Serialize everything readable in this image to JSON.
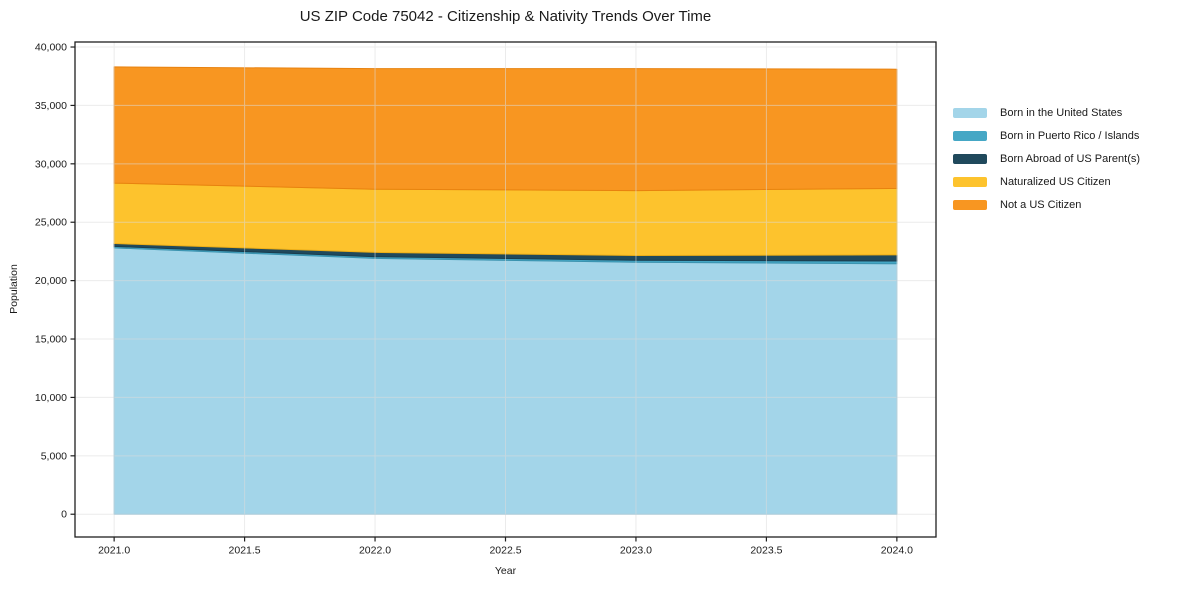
{
  "chart_data": {
    "type": "area",
    "stacked": true,
    "title": "US ZIP Code 75042 - Citizenship & Nativity Trends Over Time",
    "xlabel": "Year",
    "ylabel": "Population",
    "x": [
      2021,
      2022,
      2023,
      2024
    ],
    "series": [
      {
        "name": "Born in the United States",
        "color": "#A3D5E9",
        "edge_color": "#8CC3DB",
        "values": [
          22800,
          21900,
          21580,
          21440
        ]
      },
      {
        "name": "Born in Puerto Rico / Islands",
        "color": "#45A7C5",
        "edge_color": "#3B93AF",
        "values": [
          130,
          150,
          170,
          240
        ]
      },
      {
        "name": "Born Abroad of US Parent(s)",
        "color": "#20495C",
        "edge_color": "#1A3D4E",
        "values": [
          250,
          370,
          400,
          520
        ]
      },
      {
        "name": "Naturalized US Citizen",
        "color": "#FDC32D",
        "edge_color": "#EDAE17",
        "values": [
          5170,
          5410,
          5560,
          5700
        ]
      },
      {
        "name": "Not a US Citizen",
        "color": "#F89621",
        "edge_color": "#E8820F",
        "values": [
          9950,
          10320,
          10440,
          10200
        ]
      }
    ],
    "xlim": [
      2020.85,
      2024.15
    ],
    "ylim": [
      -1950,
      40430
    ],
    "x_ticks": [
      2021.0,
      2021.5,
      2022.0,
      2022.5,
      2023.0,
      2023.5,
      2024.0
    ],
    "x_tick_labels": [
      "2021.0",
      "2021.5",
      "2022.0",
      "2022.5",
      "2023.0",
      "2023.5",
      "2024.0"
    ],
    "y_ticks": [
      0,
      5000,
      10000,
      15000,
      20000,
      25000,
      30000,
      35000,
      40000
    ],
    "y_tick_labels": [
      "0",
      "5,000",
      "10,000",
      "15,000",
      "20,000",
      "25,000",
      "30,000",
      "35,000",
      "40,000"
    ],
    "grid": true,
    "legend_position": "right-outside"
  },
  "colors": {
    "background": "#ffffff",
    "grid": "#dcdcdc",
    "spine": "#1f1f1f",
    "tick_text": "#1a1a1a"
  }
}
